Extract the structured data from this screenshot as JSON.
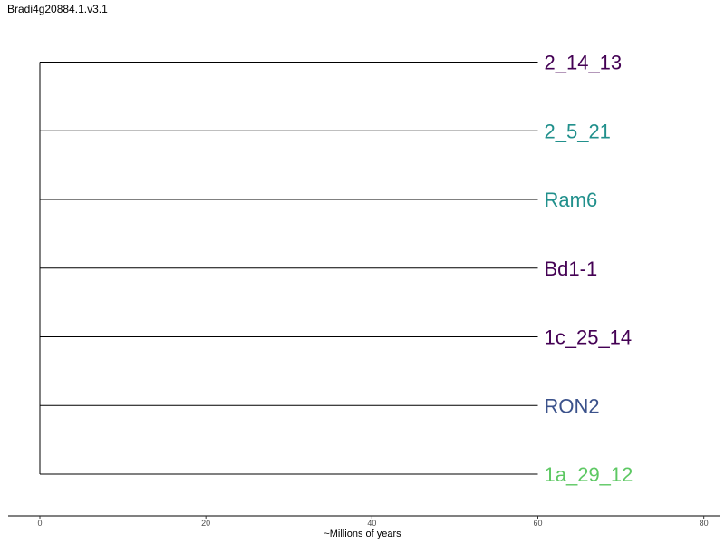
{
  "title": "Bradi4g20884.1.v3.1",
  "tree": {
    "root_age": 0,
    "leaves": [
      {
        "label": "2_14_13",
        "age": 60,
        "color": "#440154"
      },
      {
        "label": "2_5_21",
        "age": 60,
        "color": "#21908C"
      },
      {
        "label": "Ram6",
        "age": 60,
        "color": "#21908C"
      },
      {
        "label": "Bd1-1",
        "age": 60,
        "color": "#440154"
      },
      {
        "label": "1c_25_14",
        "age": 60,
        "color": "#440154"
      },
      {
        "label": "RON2",
        "age": 60,
        "color": "#3B528B"
      },
      {
        "label": "1a_29_12",
        "age": 60,
        "color": "#5DC863"
      }
    ]
  },
  "axis": {
    "label": "~Millions of years",
    "ticks": [
      "0",
      "20",
      "40",
      "60",
      "80"
    ],
    "tick_values": [
      0,
      20,
      40,
      60,
      80
    ],
    "range": [
      -3.8,
      81.8
    ]
  }
}
